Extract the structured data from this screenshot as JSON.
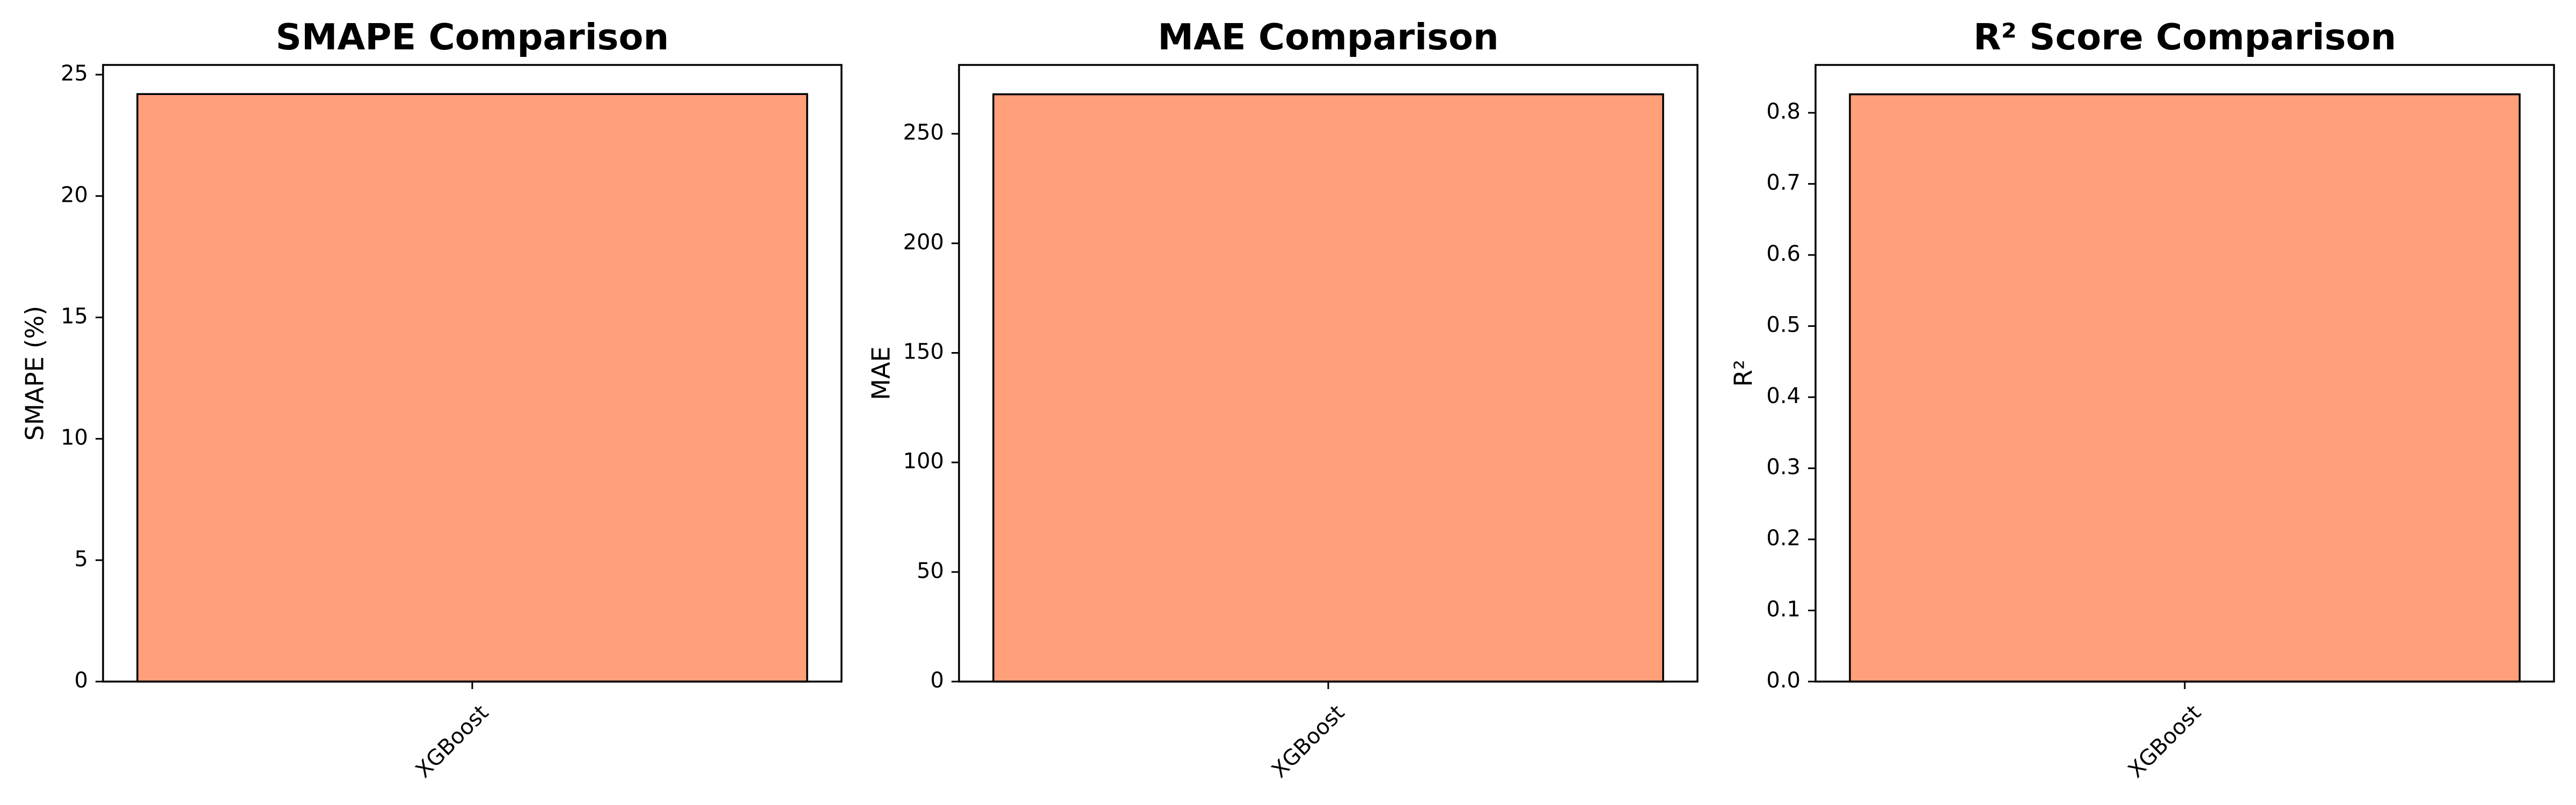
{
  "chart_data": [
    {
      "type": "bar",
      "title": "SMAPE Comparison",
      "xlabel": "",
      "ylabel": "SMAPE (%)",
      "categories": [
        "XGBoost"
      ],
      "values": [
        24.2
      ],
      "ylim": [
        0,
        25.4
      ],
      "yticks": [
        0,
        5,
        10,
        15,
        20,
        25
      ],
      "ytick_labels": [
        "0",
        "5",
        "10",
        "15",
        "20",
        "25"
      ],
      "bar_color": "#ffa07a",
      "edge_color": "#000000",
      "grid": false
    },
    {
      "type": "bar",
      "title": "MAE Comparison",
      "xlabel": "",
      "ylabel": "MAE",
      "categories": [
        "XGBoost"
      ],
      "values": [
        268
      ],
      "ylim": [
        0,
        281.4
      ],
      "yticks": [
        0,
        50,
        100,
        150,
        200,
        250
      ],
      "ytick_labels": [
        "0",
        "50",
        "100",
        "150",
        "200",
        "250"
      ],
      "bar_color": "#ffa07a",
      "edge_color": "#000000",
      "grid": false
    },
    {
      "type": "bar",
      "title": "R² Score Comparison",
      "xlabel": "",
      "ylabel": "R²",
      "categories": [
        "XGBoost"
      ],
      "values": [
        0.826
      ],
      "ylim": [
        0,
        0.8673
      ],
      "yticks": [
        0,
        0.1,
        0.2,
        0.3,
        0.4,
        0.5,
        0.6,
        0.7,
        0.8
      ],
      "ytick_labels": [
        "0.0",
        "0.1",
        "0.2",
        "0.3",
        "0.4",
        "0.5",
        "0.6",
        "0.7",
        "0.8"
      ],
      "bar_color": "#ffa07a",
      "edge_color": "#000000",
      "grid": false
    }
  ]
}
